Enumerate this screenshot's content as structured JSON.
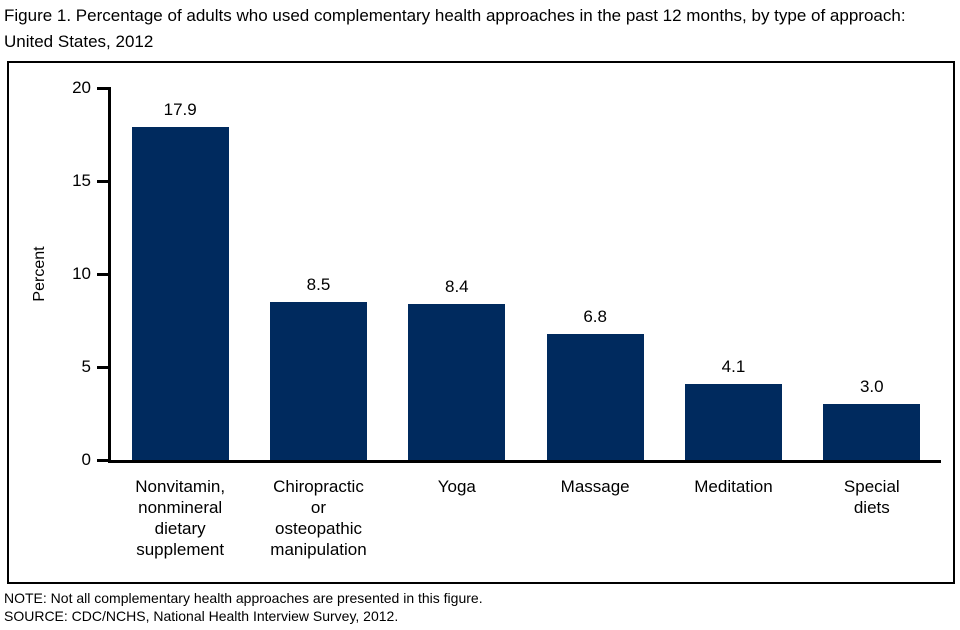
{
  "figure": {
    "title": "Figure 1. Percentage of adults who used complementary health approaches in the past 12 months, by type of approach: United States, 2012"
  },
  "chart_data": {
    "type": "bar",
    "title": "Figure 1. Percentage of adults who used complementary health approaches in the past 12 months, by type of approach: United States, 2012",
    "categories": [
      "Nonvitamin,\nnonmineral\ndietary\nsupplement",
      "Chiropractic\nor\nosteopathic\nmanipulation",
      "Yoga",
      "Massage",
      "Meditation",
      "Special\ndiets"
    ],
    "values": [
      17.9,
      8.5,
      8.4,
      6.8,
      4.1,
      3.0
    ],
    "value_labels": [
      "17.9",
      "8.5",
      "8.4",
      "6.8",
      "4.1",
      "3.0"
    ],
    "xlabel": "",
    "ylabel": "Percent",
    "ylim": [
      0,
      20
    ],
    "yticks": [
      0,
      5,
      10,
      15,
      20
    ],
    "grid": false,
    "legend": null,
    "bar_color": "#002a5e",
    "axis_color": "#000000"
  },
  "footer": {
    "note": "NOTE: Not all complementary health approaches are presented in this figure.",
    "source": "SOURCE: CDC/NCHS, National Health Interview Survey, 2012."
  }
}
